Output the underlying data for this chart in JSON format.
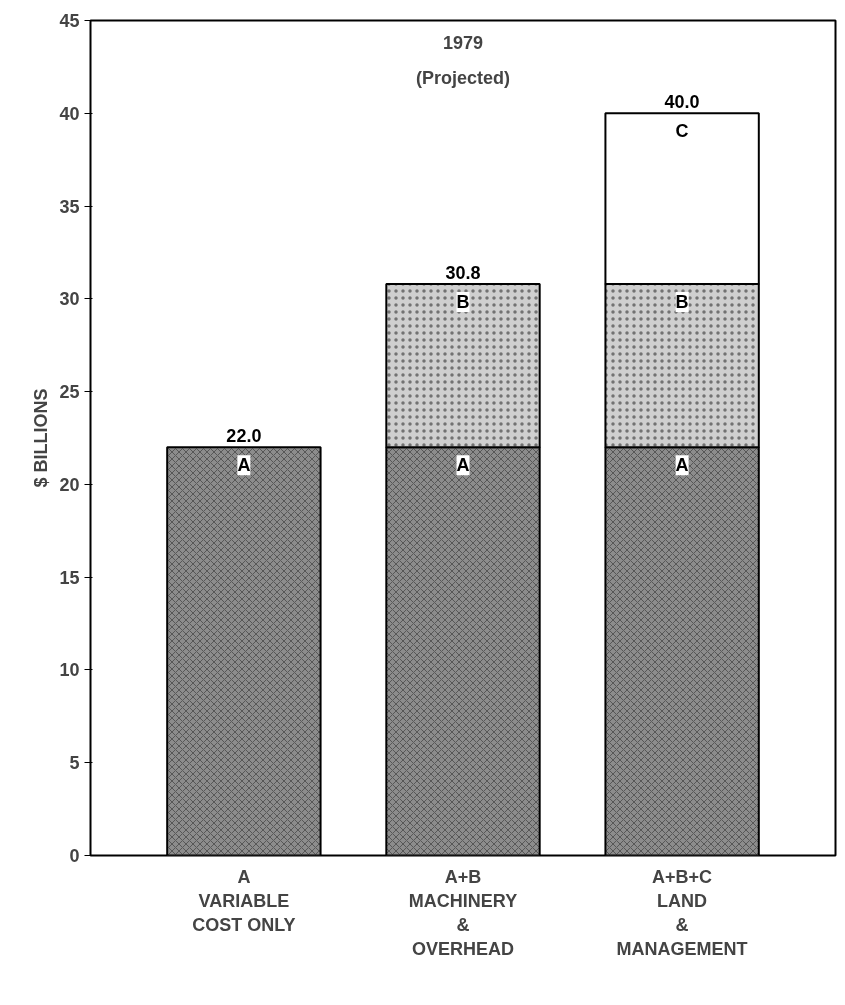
{
  "chart_data": {
    "type": "bar",
    "stacked": true,
    "title": "1979",
    "subtitle": "(Projected)",
    "ylabel": "$ BILLIONS",
    "categories": [
      "A\nVARIABLE\nCOST ONLY",
      "A+B\nMACHINERY\n&\nOVERHEAD",
      "A+B+C\nLAND\n&\nMANAGEMENT"
    ],
    "series": [
      {
        "name": "A",
        "color": "#8c8c8c",
        "values": [
          22.0,
          22.0,
          22.0
        ]
      },
      {
        "name": "B",
        "color": "#cfcfcf",
        "values": [
          null,
          8.8,
          8.8
        ]
      },
      {
        "name": "C",
        "color": "#ffffff",
        "values": [
          null,
          null,
          9.2
        ]
      }
    ],
    "totals": [
      "22.0",
      "30.8",
      "40.0"
    ],
    "ylim": [
      0,
      45
    ],
    "yticks": [
      0,
      5,
      10,
      15,
      20,
      25,
      30,
      35,
      40,
      45
    ],
    "grid": false
  }
}
